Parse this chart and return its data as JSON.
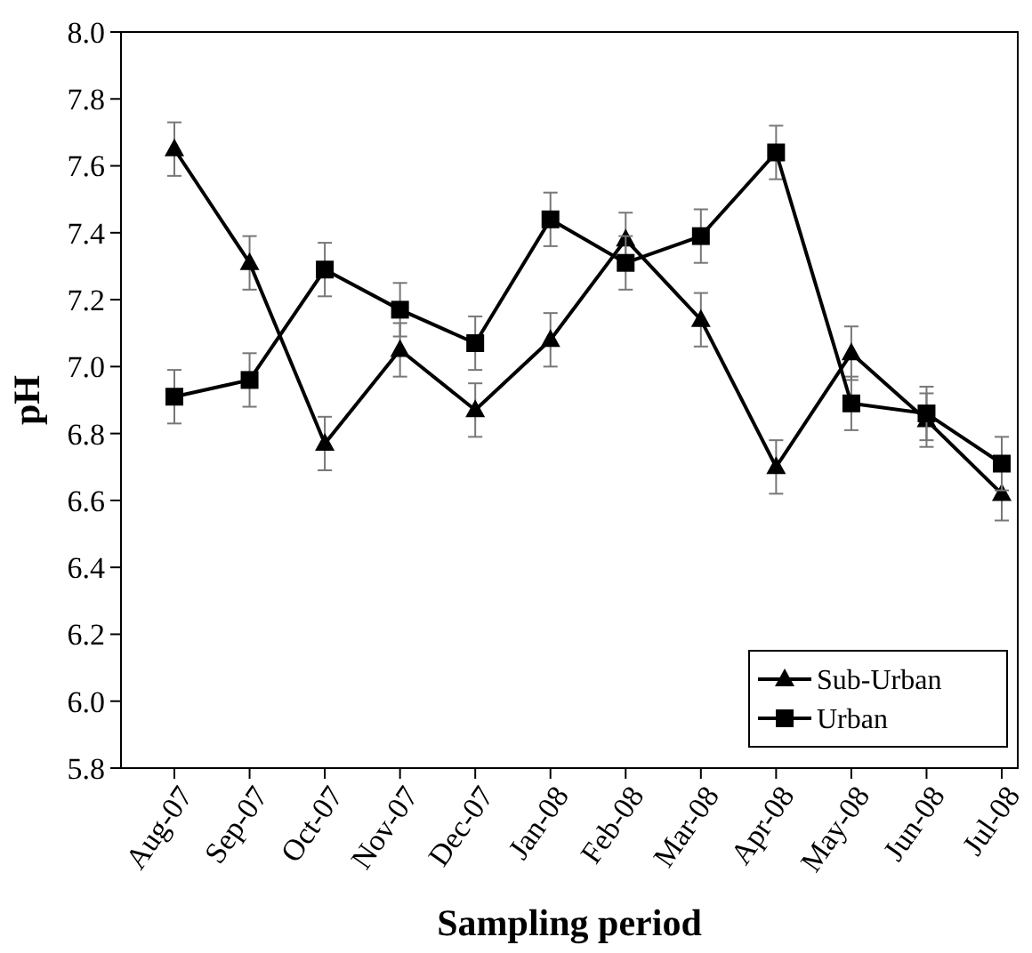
{
  "chart_data": {
    "type": "line",
    "xlabel": "Sampling period",
    "ylabel": "pH",
    "categories": [
      "Aug-07",
      "Sep-07",
      "Oct-07",
      "Nov-07",
      "Dec-07",
      "Jan-08",
      "Feb-08",
      "Mar-08",
      "Apr-08",
      "May-08",
      "Jun-08",
      "Jul-08"
    ],
    "ylim": [
      5.8,
      8.0
    ],
    "yticks": [
      5.8,
      {
        "value": 6.0,
        "label": "6.0"
      },
      6.2,
      6.4,
      6.6,
      6.8,
      {
        "value": 7.0,
        "label": "7.0"
      },
      7.2,
      7.4,
      7.6,
      7.8,
      {
        "value": 8.0,
        "label": "8.0"
      }
    ],
    "legend": "bottom right",
    "grid": false,
    "series": [
      {
        "name": "Sub-Urban",
        "color": "#000000",
        "marker": "triangle",
        "values": [
          7.65,
          7.31,
          6.77,
          7.05,
          6.87,
          7.08,
          7.38,
          7.14,
          6.7,
          7.04,
          6.84,
          6.62
        ],
        "errors": [
          0.08,
          0.08,
          0.08,
          0.08,
          0.08,
          0.08,
          0.08,
          0.08,
          0.08,
          0.08,
          0.08,
          0.08
        ]
      },
      {
        "name": "Urban",
        "color": "#000000",
        "marker": "square",
        "values": [
          6.91,
          6.96,
          7.29,
          7.17,
          7.07,
          7.44,
          7.31,
          7.39,
          7.64,
          6.89,
          6.86,
          6.71
        ],
        "errors": [
          0.08,
          0.08,
          0.08,
          0.08,
          0.08,
          0.08,
          0.08,
          0.08,
          0.08,
          0.08,
          0.08,
          0.08
        ]
      }
    ]
  }
}
